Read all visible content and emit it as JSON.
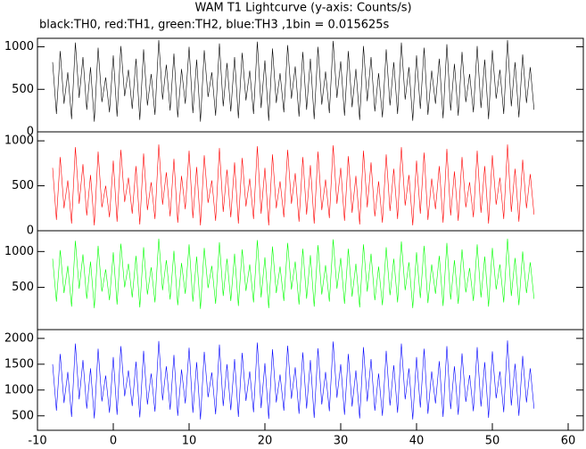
{
  "header": {
    "title": "WAM T1 Lightcurve (y-axis: Counts/s)",
    "subtitle": "black:TH0, red:TH1, green:TH2, blue:TH3 ,1bin = 0.015625s"
  },
  "chart_data": [
    {
      "type": "line",
      "series_name": "TH0",
      "color": "#000000",
      "xlim": [
        -10,
        62
      ],
      "ylim": [
        0,
        1100
      ],
      "yticks": [
        0,
        500,
        1000
      ],
      "x": [
        -8,
        -7.5,
        -7,
        -6.5,
        -6,
        -5.5,
        -5,
        -4.5,
        -4,
        -3.5,
        -3,
        -2.5,
        -2,
        -1.5,
        -1,
        -0.5,
        0,
        0.5,
        1,
        1.5,
        2,
        2.5,
        3,
        3.5,
        4,
        4.5,
        5,
        5.5,
        6,
        6.5,
        7,
        7.5,
        8,
        8.5,
        9,
        9.5,
        10,
        10.5,
        11,
        11.5,
        12,
        12.5,
        13,
        13.5,
        14,
        14.5,
        15,
        15.5,
        16,
        16.5,
        17,
        17.5,
        18,
        18.5,
        19,
        19.5,
        20,
        20.5,
        21,
        21.5,
        22,
        22.5,
        23,
        23.5,
        24,
        24.5,
        25,
        25.5,
        26,
        26.5,
        27,
        27.5,
        28,
        28.5,
        29,
        29.5,
        30,
        30.5,
        31,
        31.5,
        32,
        32.5,
        33,
        33.5,
        34,
        34.5,
        35,
        35.5,
        36,
        36.5,
        37,
        37.5,
        38,
        38.5,
        39,
        39.5,
        40,
        40.5,
        41,
        41.5,
        42,
        42.5,
        43,
        43.5,
        44,
        44.5,
        45,
        45.5,
        46,
        46.5,
        47,
        47.5,
        48,
        48.5,
        49,
        49.5,
        50,
        50.5,
        51,
        51.5,
        52,
        52.5,
        53,
        53.5,
        54,
        54.5,
        55,
        55.5
      ],
      "values": [
        820,
        210,
        950,
        330,
        700,
        150,
        1050,
        400,
        880,
        260,
        760,
        120,
        990,
        350,
        640,
        230,
        900,
        180,
        1010,
        420,
        730,
        270,
        860,
        140,
        970,
        310,
        680,
        200,
        1080,
        380,
        790,
        250,
        920,
        170,
        740,
        330,
        1000,
        220,
        850,
        120,
        960,
        410,
        700,
        190,
        1040,
        300,
        810,
        240,
        880,
        160,
        930,
        370,
        720,
        210,
        1060,
        280,
        840,
        130,
        980,
        340,
        690,
        230,
        1020,
        390,
        770,
        180,
        940,
        260,
        860,
        150,
        1000,
        320,
        710,
        220,
        1070,
        400,
        830,
        190,
        950,
        290,
        740,
        140,
        1010,
        360,
        880,
        240,
        690,
        170,
        970,
        310,
        820,
        210,
        1050,
        380,
        760,
        130,
        900,
        270,
        990,
        200,
        720,
        330,
        860,
        160,
        1030,
        250,
        800,
        190,
        940,
        350,
        680,
        230,
        1010,
        280,
        850,
        150,
        960,
        390,
        730,
        210,
        1080,
        300,
        820,
        170,
        910,
        340,
        760,
        260
      ]
    },
    {
      "type": "line",
      "series_name": "TH1",
      "color": "#ff0000",
      "xlim": [
        -10,
        62
      ],
      "ylim": [
        0,
        1100
      ],
      "yticks": [
        0,
        500,
        1000
      ],
      "x": [
        -8,
        -7.5,
        -7,
        -6.5,
        -6,
        -5.5,
        -5,
        -4.5,
        -4,
        -3.5,
        -3,
        -2.5,
        -2,
        -1.5,
        -1,
        -0.5,
        0,
        0.5,
        1,
        1.5,
        2,
        2.5,
        3,
        3.5,
        4,
        4.5,
        5,
        5.5,
        6,
        6.5,
        7,
        7.5,
        8,
        8.5,
        9,
        9.5,
        10,
        10.5,
        11,
        11.5,
        12,
        12.5,
        13,
        13.5,
        14,
        14.5,
        15,
        15.5,
        16,
        16.5,
        17,
        17.5,
        18,
        18.5,
        19,
        19.5,
        20,
        20.5,
        21,
        21.5,
        22,
        22.5,
        23,
        23.5,
        24,
        24.5,
        25,
        25.5,
        26,
        26.5,
        27,
        27.5,
        28,
        28.5,
        29,
        29.5,
        30,
        30.5,
        31,
        31.5,
        32,
        32.5,
        33,
        33.5,
        34,
        34.5,
        35,
        35.5,
        36,
        36.5,
        37,
        37.5,
        38,
        38.5,
        39,
        39.5,
        40,
        40.5,
        41,
        41.5,
        42,
        42.5,
        43,
        43.5,
        44,
        44.5,
        45,
        45.5,
        46,
        46.5,
        47,
        47.5,
        48,
        48.5,
        49,
        49.5,
        50,
        50.5,
        51,
        51.5,
        52,
        52.5,
        53,
        53.5,
        54,
        54.5,
        55,
        55.5
      ],
      "values": [
        700,
        120,
        820,
        250,
        560,
        80,
        930,
        300,
        740,
        170,
        620,
        60,
        880,
        260,
        500,
        150,
        780,
        100,
        900,
        320,
        590,
        190,
        720,
        70,
        860,
        230,
        540,
        130,
        960,
        290,
        650,
        160,
        800,
        90,
        610,
        240,
        890,
        140,
        710,
        60,
        840,
        310,
        560,
        110,
        920,
        210,
        680,
        150,
        760,
        80,
        810,
        270,
        580,
        130,
        940,
        190,
        700,
        60,
        850,
        250,
        550,
        150,
        900,
        300,
        640,
        100,
        820,
        180,
        730,
        80,
        880,
        230,
        570,
        140,
        950,
        300,
        700,
        110,
        830,
        200,
        610,
        70,
        890,
        260,
        760,
        160,
        550,
        90,
        850,
        220,
        690,
        130,
        930,
        280,
        620,
        60,
        780,
        190,
        870,
        120,
        580,
        240,
        720,
        90,
        910,
        170,
        660,
        110,
        820,
        260,
        540,
        150,
        890,
        200,
        720,
        80,
        840,
        290,
        590,
        130,
        960,
        210,
        690,
        100,
        790,
        250,
        630,
        180
      ]
    },
    {
      "type": "line",
      "series_name": "TH2",
      "color": "#00ff00",
      "xlim": [
        -10,
        62
      ],
      "ylim": [
        -90,
        1290
      ],
      "yticks": [
        500,
        1000
      ],
      "x": [
        -8,
        -7.5,
        -7,
        -6.5,
        -6,
        -5.5,
        -5,
        -4.5,
        -4,
        -3.5,
        -3,
        -2.5,
        -2,
        -1.5,
        -1,
        -0.5,
        0,
        0.5,
        1,
        1.5,
        2,
        2.5,
        3,
        3.5,
        4,
        4.5,
        5,
        5.5,
        6,
        6.5,
        7,
        7.5,
        8,
        8.5,
        9,
        9.5,
        10,
        10.5,
        11,
        11.5,
        12,
        12.5,
        13,
        13.5,
        14,
        14.5,
        15,
        15.5,
        16,
        16.5,
        17,
        17.5,
        18,
        18.5,
        19,
        19.5,
        20,
        20.5,
        21,
        21.5,
        22,
        22.5,
        23,
        23.5,
        24,
        24.5,
        25,
        25.5,
        26,
        26.5,
        27,
        27.5,
        28,
        28.5,
        29,
        29.5,
        30,
        30.5,
        31,
        31.5,
        32,
        32.5,
        33,
        33.5,
        34,
        34.5,
        35,
        35.5,
        36,
        36.5,
        37,
        37.5,
        38,
        38.5,
        39,
        39.5,
        40,
        40.5,
        41,
        41.5,
        42,
        42.5,
        43,
        43.5,
        44,
        44.5,
        45,
        45.5,
        46,
        46.5,
        47,
        47.5,
        48,
        48.5,
        49,
        49.5,
        50,
        50.5,
        51,
        51.5,
        52,
        52.5,
        53,
        53.5,
        54,
        54.5,
        55,
        55.5
      ],
      "values": [
        900,
        300,
        1020,
        420,
        800,
        230,
        1150,
        480,
        960,
        340,
        860,
        210,
        1080,
        440,
        750,
        320,
        990,
        260,
        1110,
        500,
        830,
        360,
        940,
        220,
        1060,
        400,
        780,
        290,
        1180,
        460,
        880,
        330,
        1010,
        250,
        840,
        410,
        1100,
        300,
        930,
        200,
        1050,
        490,
        800,
        270,
        1130,
        380,
        900,
        310,
        970,
        240,
        1030,
        450,
        820,
        290,
        1160,
        360,
        920,
        210,
        1070,
        420,
        790,
        310,
        1120,
        470,
        860,
        260,
        1040,
        340,
        950,
        230,
        1090,
        400,
        810,
        300,
        1170,
        480,
        910,
        270,
        1040,
        370,
        830,
        220,
        1100,
        440,
        970,
        320,
        790,
        250,
        1060,
        390,
        900,
        290,
        1140,
        460,
        850,
        210,
        990,
        350,
        1080,
        280,
        820,
        410,
        940,
        240,
        1120,
        330,
        880,
        270,
        1030,
        430,
        770,
        310,
        1100,
        360,
        930,
        230,
        1050,
        470,
        820,
        290,
        1180,
        380,
        910,
        250,
        1000,
        420,
        850,
        340
      ]
    },
    {
      "type": "line",
      "series_name": "TH3",
      "color": "#0000ff",
      "xlim": [
        -10,
        62
      ],
      "ylim": [
        220,
        2170
      ],
      "yticks": [
        500,
        1000,
        1500,
        2000
      ],
      "xticks": [
        -10,
        0,
        10,
        20,
        30,
        40,
        50,
        60
      ],
      "x": [
        -8,
        -7.5,
        -7,
        -6.5,
        -6,
        -5.5,
        -5,
        -4.5,
        -4,
        -3.5,
        -3,
        -2.5,
        -2,
        -1.5,
        -1,
        -0.5,
        0,
        0.5,
        1,
        1.5,
        2,
        2.5,
        3,
        3.5,
        4,
        4.5,
        5,
        5.5,
        6,
        6.5,
        7,
        7.5,
        8,
        8.5,
        9,
        9.5,
        10,
        10.5,
        11,
        11.5,
        12,
        12.5,
        13,
        13.5,
        14,
        14.5,
        15,
        15.5,
        16,
        16.5,
        17,
        17.5,
        18,
        18.5,
        19,
        19.5,
        20,
        20.5,
        21,
        21.5,
        22,
        22.5,
        23,
        23.5,
        24,
        24.5,
        25,
        25.5,
        26,
        26.5,
        27,
        27.5,
        28,
        28.5,
        29,
        29.5,
        30,
        30.5,
        31,
        31.5,
        32,
        32.5,
        33,
        33.5,
        34,
        34.5,
        35,
        35.5,
        36,
        36.5,
        37,
        37.5,
        38,
        38.5,
        39,
        39.5,
        40,
        40.5,
        41,
        41.5,
        42,
        42.5,
        43,
        43.5,
        44,
        44.5,
        45,
        45.5,
        46,
        46.5,
        47,
        47.5,
        48,
        48.5,
        49,
        49.5,
        50,
        50.5,
        51,
        51.5,
        52,
        52.5,
        53,
        53.5,
        54,
        54.5,
        55,
        55.5
      ],
      "values": [
        1500,
        600,
        1700,
        750,
        1350,
        480,
        1900,
        820,
        1580,
        640,
        1420,
        450,
        1800,
        780,
        1280,
        560,
        1640,
        520,
        1850,
        880,
        1380,
        690,
        1550,
        470,
        1760,
        720,
        1320,
        580,
        1950,
        800,
        1460,
        620,
        1680,
        500,
        1400,
        740,
        1820,
        560,
        1540,
        430,
        1740,
        860,
        1340,
        530,
        1880,
        690,
        1500,
        610,
        1600,
        480,
        1720,
        790,
        1360,
        570,
        1920,
        650,
        1520,
        440,
        1790,
        760,
        1300,
        600,
        1860,
        830,
        1440,
        540,
        1730,
        640,
        1580,
        460,
        1810,
        720,
        1350,
        590,
        1940,
        850,
        1500,
        520,
        1700,
        680,
        1380,
        450,
        1830,
        780,
        1600,
        600,
        1320,
        500,
        1760,
        700,
        1480,
        560,
        1900,
        820,
        1420,
        430,
        1640,
        660,
        1800,
        540,
        1360,
        740,
        1560,
        480,
        1850,
        630,
        1460,
        520,
        1710,
        770,
        1290,
        590,
        1830,
        680,
        1540,
        460,
        1750,
        840,
        1360,
        570,
        1960,
        700,
        1510,
        500,
        1660,
        760,
        1420,
        640
      ]
    }
  ]
}
